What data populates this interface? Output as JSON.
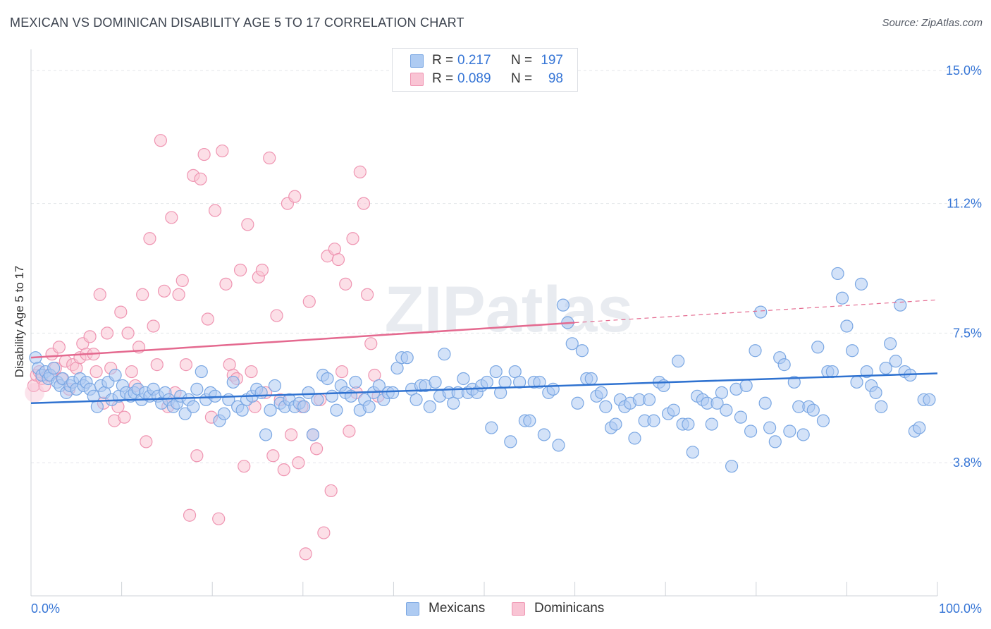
{
  "title": "MEXICAN VS DOMINICAN DISABILITY AGE 5 TO 17 CORRELATION CHART",
  "source": "Source: ZipAtlas.com",
  "watermark": "ZIPatlas",
  "legend_top": {
    "rows": [
      {
        "r_label": "R =",
        "r_value": "0.217",
        "n_label": "N =",
        "n_value": "197"
      },
      {
        "r_label": "R =",
        "r_value": "0.089",
        "n_label": "N =",
        "n_value": "98"
      }
    ]
  },
  "legend_bottom": {
    "mexicans": "Mexicans",
    "dominicans": "Dominicans"
  },
  "colors": {
    "mexicans_fill": "#aecbf2",
    "mexicans_stroke": "#7aa7e3",
    "mexicans_line": "#2f72d0",
    "dominicans_fill": "#f9c4d4",
    "dominicans_stroke": "#ef95b2",
    "dominicans_line": "#e4698f",
    "axis_label": "#3776d6",
    "grid": "#e3e6ea"
  },
  "chart_data": {
    "type": "scatter",
    "title": "MEXICAN VS DOMINICAN DISABILITY AGE 5 TO 17 CORRELATION CHART",
    "xlabel": "",
    "ylabel": "Disability Age 5 to 17",
    "xlim": [
      0,
      100
    ],
    "ylim": [
      0,
      15.6
    ],
    "x_tick_labels": [
      {
        "value": 0,
        "label": "0.0%"
      },
      {
        "value": 100,
        "label": "100.0%"
      }
    ],
    "y_ticks": [
      {
        "value": 3.8,
        "label": "3.8%"
      },
      {
        "value": 7.5,
        "label": "7.5%"
      },
      {
        "value": 11.2,
        "label": "11.2%"
      },
      {
        "value": 15.0,
        "label": "15.0%"
      }
    ],
    "grid": true,
    "legend_position": "bottom-center",
    "series": [
      {
        "name": "Mexicans",
        "R": 0.217,
        "N": 197,
        "trend": {
          "x": [
            0,
            100
          ],
          "y": [
            5.5,
            6.35
          ]
        },
        "points": [
          [
            0.5,
            6.8
          ],
          [
            0.8,
            6.5
          ],
          [
            1.2,
            6.3
          ],
          [
            1.6,
            6.4
          ],
          [
            1.9,
            6.2
          ],
          [
            2.1,
            6.3
          ],
          [
            2.5,
            6.5
          ],
          [
            2.9,
            6.1
          ],
          [
            3.2,
            6.0
          ],
          [
            3.5,
            6.2
          ],
          [
            3.9,
            5.8
          ],
          [
            4.3,
            6.0
          ],
          [
            4.6,
            6.1
          ],
          [
            5.0,
            5.9
          ],
          [
            5.4,
            6.2
          ],
          [
            5.8,
            6.0
          ],
          [
            6.1,
            6.1
          ],
          [
            6.5,
            5.9
          ],
          [
            6.9,
            5.7
          ],
          [
            7.3,
            5.4
          ],
          [
            7.7,
            6.0
          ],
          [
            8.1,
            5.8
          ],
          [
            8.5,
            6.1
          ],
          [
            8.9,
            5.6
          ],
          [
            9.3,
            6.3
          ],
          [
            9.7,
            5.7
          ],
          [
            10.1,
            6.0
          ],
          [
            10.5,
            5.8
          ],
          [
            11.0,
            5.7
          ],
          [
            11.4,
            5.8
          ],
          [
            11.8,
            5.9
          ],
          [
            12.2,
            5.6
          ],
          [
            12.6,
            5.8
          ],
          [
            13.1,
            5.7
          ],
          [
            13.5,
            5.9
          ],
          [
            14.0,
            5.7
          ],
          [
            14.4,
            5.5
          ],
          [
            14.8,
            5.8
          ],
          [
            15.2,
            5.6
          ],
          [
            15.7,
            5.4
          ],
          [
            16.1,
            5.5
          ],
          [
            16.5,
            5.7
          ],
          [
            17.0,
            5.2
          ],
          [
            17.4,
            5.6
          ],
          [
            17.9,
            5.4
          ],
          [
            18.3,
            5.9
          ],
          [
            18.8,
            6.4
          ],
          [
            19.3,
            5.6
          ],
          [
            19.8,
            5.8
          ],
          [
            20.3,
            5.7
          ],
          [
            20.8,
            5.0
          ],
          [
            21.3,
            5.2
          ],
          [
            21.8,
            5.6
          ],
          [
            22.3,
            6.1
          ],
          [
            22.8,
            5.4
          ],
          [
            23.3,
            5.3
          ],
          [
            23.8,
            5.6
          ],
          [
            24.4,
            5.7
          ],
          [
            24.9,
            5.9
          ],
          [
            25.4,
            5.8
          ],
          [
            25.9,
            4.6
          ],
          [
            26.4,
            5.3
          ],
          [
            26.9,
            6.0
          ],
          [
            27.5,
            5.5
          ],
          [
            28.0,
            5.4
          ],
          [
            28.5,
            5.6
          ],
          [
            29.1,
            5.4
          ],
          [
            29.6,
            5.5
          ],
          [
            30.1,
            5.4
          ],
          [
            30.6,
            5.8
          ],
          [
            31.1,
            4.6
          ],
          [
            31.6,
            5.6
          ],
          [
            32.2,
            6.3
          ],
          [
            32.7,
            6.2
          ],
          [
            33.2,
            5.7
          ],
          [
            33.7,
            5.3
          ],
          [
            34.2,
            6.0
          ],
          [
            34.7,
            5.8
          ],
          [
            35.3,
            5.7
          ],
          [
            35.8,
            6.1
          ],
          [
            36.3,
            5.3
          ],
          [
            36.8,
            5.6
          ],
          [
            37.3,
            5.4
          ],
          [
            37.8,
            5.8
          ],
          [
            38.4,
            6.0
          ],
          [
            38.9,
            5.6
          ],
          [
            39.4,
            5.8
          ],
          [
            39.9,
            5.8
          ],
          [
            40.4,
            6.5
          ],
          [
            40.9,
            6.8
          ],
          [
            41.5,
            6.8
          ],
          [
            42.0,
            5.9
          ],
          [
            42.5,
            5.6
          ],
          [
            43.0,
            6.0
          ],
          [
            43.5,
            6.0
          ],
          [
            44.0,
            5.4
          ],
          [
            44.6,
            6.1
          ],
          [
            45.1,
            5.7
          ],
          [
            45.6,
            6.9
          ],
          [
            46.1,
            5.8
          ],
          [
            46.6,
            5.5
          ],
          [
            47.1,
            5.8
          ],
          [
            47.7,
            6.2
          ],
          [
            48.2,
            5.8
          ],
          [
            48.7,
            5.9
          ],
          [
            49.2,
            5.8
          ],
          [
            49.7,
            6.0
          ],
          [
            50.3,
            6.1
          ],
          [
            50.8,
            4.8
          ],
          [
            51.3,
            6.4
          ],
          [
            51.8,
            5.8
          ],
          [
            52.3,
            6.1
          ],
          [
            52.9,
            4.4
          ],
          [
            53.4,
            6.4
          ],
          [
            53.9,
            6.1
          ],
          [
            54.5,
            5.0
          ],
          [
            55.0,
            5.0
          ],
          [
            55.5,
            6.1
          ],
          [
            56.1,
            6.1
          ],
          [
            56.6,
            4.6
          ],
          [
            57.1,
            5.8
          ],
          [
            57.6,
            5.9
          ],
          [
            58.2,
            4.3
          ],
          [
            58.7,
            8.3
          ],
          [
            59.2,
            7.8
          ],
          [
            59.7,
            7.2
          ],
          [
            60.3,
            5.5
          ],
          [
            60.8,
            7.0
          ],
          [
            61.3,
            6.2
          ],
          [
            61.8,
            6.2
          ],
          [
            62.4,
            5.7
          ],
          [
            62.9,
            5.8
          ],
          [
            63.4,
            5.4
          ],
          [
            64.0,
            4.8
          ],
          [
            64.5,
            4.9
          ],
          [
            65.0,
            5.6
          ],
          [
            65.5,
            5.4
          ],
          [
            66.1,
            5.5
          ],
          [
            66.6,
            4.5
          ],
          [
            67.1,
            5.6
          ],
          [
            67.7,
            5.0
          ],
          [
            68.2,
            5.6
          ],
          [
            68.7,
            5.0
          ],
          [
            69.3,
            6.1
          ],
          [
            69.8,
            6.0
          ],
          [
            70.3,
            5.2
          ],
          [
            70.9,
            5.3
          ],
          [
            71.4,
            6.7
          ],
          [
            71.9,
            4.9
          ],
          [
            72.5,
            4.9
          ],
          [
            73.0,
            4.1
          ],
          [
            73.5,
            5.7
          ],
          [
            74.1,
            5.6
          ],
          [
            74.6,
            5.5
          ],
          [
            75.1,
            4.9
          ],
          [
            75.7,
            5.5
          ],
          [
            76.2,
            5.8
          ],
          [
            76.7,
            5.3
          ],
          [
            77.3,
            3.7
          ],
          [
            77.8,
            5.9
          ],
          [
            78.3,
            5.1
          ],
          [
            78.9,
            6.0
          ],
          [
            79.4,
            4.7
          ],
          [
            79.9,
            7.0
          ],
          [
            80.5,
            8.1
          ],
          [
            81.0,
            5.5
          ],
          [
            81.5,
            4.8
          ],
          [
            82.1,
            4.4
          ],
          [
            82.6,
            6.8
          ],
          [
            83.1,
            6.6
          ],
          [
            83.7,
            4.7
          ],
          [
            84.2,
            6.1
          ],
          [
            84.7,
            5.4
          ],
          [
            85.2,
            4.6
          ],
          [
            85.8,
            5.4
          ],
          [
            86.3,
            5.3
          ],
          [
            86.8,
            7.1
          ],
          [
            87.4,
            5.0
          ],
          [
            87.9,
            6.4
          ],
          [
            88.4,
            6.4
          ],
          [
            89.0,
            9.2
          ],
          [
            89.5,
            8.5
          ],
          [
            90.0,
            7.7
          ],
          [
            90.6,
            7.0
          ],
          [
            91.1,
            6.1
          ],
          [
            91.6,
            8.9
          ],
          [
            92.2,
            6.4
          ],
          [
            92.7,
            6.0
          ],
          [
            93.2,
            5.8
          ],
          [
            93.8,
            5.4
          ],
          [
            94.3,
            6.5
          ],
          [
            94.8,
            7.2
          ],
          [
            95.4,
            6.7
          ],
          [
            95.9,
            8.3
          ],
          [
            96.4,
            6.4
          ],
          [
            97.0,
            6.3
          ],
          [
            97.5,
            4.7
          ],
          [
            98.0,
            4.8
          ],
          [
            98.5,
            5.6
          ],
          [
            99.1,
            5.6
          ]
        ]
      },
      {
        "name": "Dominicans",
        "R": 0.089,
        "N": 98,
        "trend": {
          "x": [
            0,
            60
          ],
          "y": [
            6.8,
            7.8
          ]
        },
        "trend_extension": {
          "x": [
            60,
            100
          ],
          "y": [
            7.8,
            8.45
          ]
        },
        "points": [
          [
            0.3,
            6.0
          ],
          [
            0.6,
            6.3
          ],
          [
            0.9,
            6.4
          ],
          [
            1.2,
            6.2
          ],
          [
            1.5,
            6.0
          ],
          [
            1.9,
            6.3
          ],
          [
            2.3,
            6.9
          ],
          [
            2.7,
            6.5
          ],
          [
            3.1,
            7.1
          ],
          [
            3.4,
            6.2
          ],
          [
            3.8,
            6.7
          ],
          [
            4.2,
            5.9
          ],
          [
            4.6,
            6.6
          ],
          [
            5.0,
            6.5
          ],
          [
            5.4,
            6.8
          ],
          [
            5.7,
            7.2
          ],
          [
            6.1,
            6.9
          ],
          [
            6.5,
            7.4
          ],
          [
            6.9,
            6.9
          ],
          [
            7.2,
            6.4
          ],
          [
            7.6,
            8.6
          ],
          [
            8.0,
            5.5
          ],
          [
            8.4,
            7.5
          ],
          [
            8.8,
            6.5
          ],
          [
            9.2,
            5.0
          ],
          [
            9.6,
            5.4
          ],
          [
            9.9,
            8.1
          ],
          [
            10.3,
            5.1
          ],
          [
            10.7,
            7.5
          ],
          [
            11.1,
            6.4
          ],
          [
            11.5,
            6.0
          ],
          [
            11.9,
            7.1
          ],
          [
            12.3,
            8.6
          ],
          [
            12.7,
            4.4
          ],
          [
            13.1,
            10.2
          ],
          [
            13.5,
            7.7
          ],
          [
            13.9,
            6.6
          ],
          [
            14.3,
            13.0
          ],
          [
            14.7,
            8.7
          ],
          [
            15.1,
            5.4
          ],
          [
            15.5,
            10.8
          ],
          [
            15.9,
            5.8
          ],
          [
            16.3,
            8.6
          ],
          [
            16.7,
            9.0
          ],
          [
            17.1,
            6.6
          ],
          [
            17.5,
            2.3
          ],
          [
            17.9,
            12.0
          ],
          [
            18.3,
            4.0
          ],
          [
            18.7,
            11.9
          ],
          [
            19.1,
            12.6
          ],
          [
            19.5,
            7.9
          ],
          [
            19.9,
            5.1
          ],
          [
            20.3,
            11.0
          ],
          [
            20.7,
            2.2
          ],
          [
            21.1,
            12.7
          ],
          [
            21.5,
            8.9
          ],
          [
            21.9,
            6.6
          ],
          [
            22.3,
            6.3
          ],
          [
            22.7,
            6.2
          ],
          [
            23.1,
            9.3
          ],
          [
            23.5,
            3.7
          ],
          [
            23.9,
            10.6
          ],
          [
            24.3,
            6.4
          ],
          [
            24.7,
            5.4
          ],
          [
            25.1,
            9.1
          ],
          [
            25.5,
            9.3
          ],
          [
            25.9,
            5.8
          ],
          [
            26.3,
            12.5
          ],
          [
            26.7,
            4.0
          ],
          [
            27.1,
            8.0
          ],
          [
            27.5,
            5.6
          ],
          [
            27.9,
            3.6
          ],
          [
            28.3,
            11.2
          ],
          [
            28.7,
            4.6
          ],
          [
            29.1,
            11.4
          ],
          [
            29.5,
            3.8
          ],
          [
            29.9,
            5.4
          ],
          [
            30.3,
            1.2
          ],
          [
            30.7,
            8.4
          ],
          [
            31.1,
            4.6
          ],
          [
            31.5,
            4.2
          ],
          [
            31.9,
            5.6
          ],
          [
            32.3,
            1.8
          ],
          [
            32.7,
            9.7
          ],
          [
            33.1,
            3.0
          ],
          [
            33.5,
            9.9
          ],
          [
            33.9,
            9.6
          ],
          [
            34.3,
            6.4
          ],
          [
            34.7,
            8.9
          ],
          [
            35.1,
            4.7
          ],
          [
            35.5,
            10.2
          ],
          [
            35.9,
            5.8
          ],
          [
            36.3,
            12.1
          ],
          [
            36.7,
            11.2
          ],
          [
            37.1,
            8.6
          ],
          [
            37.5,
            7.2
          ],
          [
            37.9,
            6.3
          ],
          [
            38.3,
            5.7
          ]
        ]
      }
    ]
  }
}
